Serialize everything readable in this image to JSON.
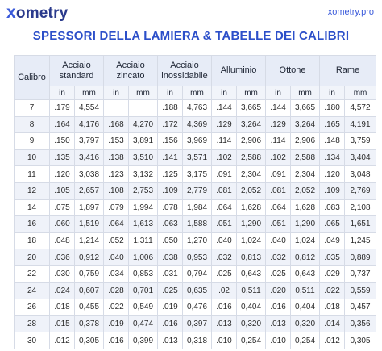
{
  "brand": {
    "logo_x": "x",
    "logo_rest": "ometry",
    "site": "xometry.pro"
  },
  "title": "SPESSORI DELLA LAMIERA & TABELLE DEI CALIBRI",
  "header": {
    "gauge": "Calibro",
    "groups": [
      "Acciaio standard",
      "Acciaio zincato",
      "Acciaio inossidabile",
      "Alluminio",
      "Ottone",
      "Rame"
    ],
    "units": [
      "in",
      "mm"
    ]
  },
  "rows": [
    [
      "7",
      ".179",
      "4,554",
      "",
      "",
      ".188",
      "4,763",
      ".144",
      "3,665",
      ".144",
      "3,665",
      ".180",
      "4,572"
    ],
    [
      "8",
      ".164",
      "4,176",
      ".168",
      "4,270",
      ".172",
      "4,369",
      ".129",
      "3,264",
      ".129",
      "3,264",
      ".165",
      "4,191"
    ],
    [
      "9",
      ".150",
      "3,797",
      ".153",
      "3,891",
      ".156",
      "3,969",
      ".114",
      "2,906",
      ".114",
      "2,906",
      ".148",
      "3,759"
    ],
    [
      "10",
      ".135",
      "3,416",
      ".138",
      "3,510",
      ".141",
      "3,571",
      ".102",
      "2,588",
      ".102",
      "2,588",
      ".134",
      "3,404"
    ],
    [
      "11",
      ".120",
      "3,038",
      ".123",
      "3,132",
      ".125",
      "3,175",
      ".091",
      "2,304",
      ".091",
      "2,304",
      ".120",
      "3,048"
    ],
    [
      "12",
      ".105",
      "2,657",
      ".108",
      "2,753",
      ".109",
      "2,779",
      ".081",
      "2,052",
      ".081",
      "2,052",
      ".109",
      "2,769"
    ],
    [
      "14",
      ".075",
      "1,897",
      ".079",
      "1,994",
      ".078",
      "1,984",
      ".064",
      "1,628",
      ".064",
      "1,628",
      ".083",
      "2,108"
    ],
    [
      "16",
      ".060",
      "1,519",
      ".064",
      "1,613",
      ".063",
      "1,588",
      ".051",
      "1,290",
      ".051",
      "1,290",
      ".065",
      "1,651"
    ],
    [
      "18",
      ".048",
      "1,214",
      ".052",
      "1,311",
      ".050",
      "1,270",
      ".040",
      "1,024",
      ".040",
      "1,024",
      ".049",
      "1,245"
    ],
    [
      "20",
      ".036",
      "0,912",
      ".040",
      "1,006",
      ".038",
      "0,953",
      ".032",
      "0,813",
      ".032",
      "0,812",
      ".035",
      "0,889"
    ],
    [
      "22",
      ".030",
      "0,759",
      ".034",
      "0,853",
      ".031",
      "0,794",
      ".025",
      "0,643",
      ".025",
      "0,643",
      ".029",
      "0,737"
    ],
    [
      "24",
      ".024",
      "0,607",
      ".028",
      "0,701",
      ".025",
      "0,635",
      ".02",
      "0,511",
      ".020",
      "0,511",
      ".022",
      "0,559"
    ],
    [
      "26",
      ".018",
      "0,455",
      ".022",
      "0,549",
      ".019",
      "0,476",
      ".016",
      "0,404",
      ".016",
      "0,404",
      ".018",
      "0,457"
    ],
    [
      "28",
      ".015",
      "0,378",
      ".019",
      "0,474",
      ".016",
      "0,397",
      ".013",
      "0,320",
      ".013",
      "0,320",
      ".014",
      "0,356"
    ],
    [
      "30",
      ".012",
      "0,305",
      ".016",
      "0,399",
      ".013",
      "0,318",
      ".010",
      "0,254",
      ".010",
      "0,254",
      ".012",
      "0,305"
    ]
  ]
}
